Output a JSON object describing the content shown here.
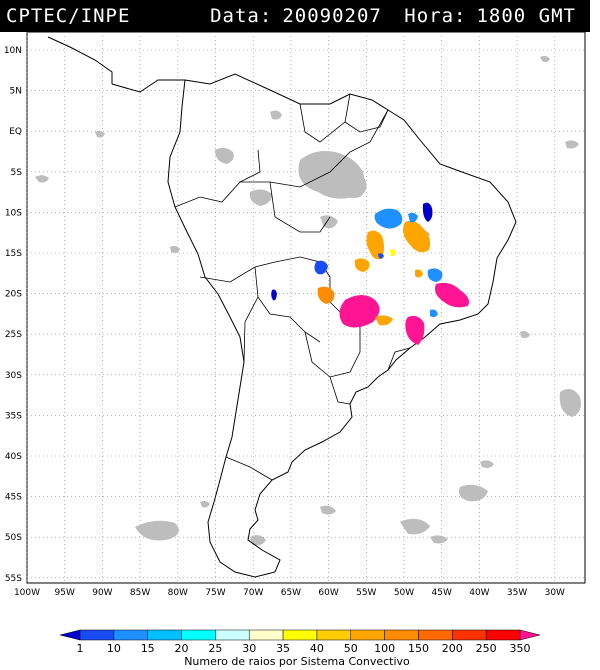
{
  "header": {
    "organization": "CPTEC/INPE",
    "date_label": "Data:",
    "date_value": "20090207",
    "time_label": "Hora:",
    "time_value": "1800 GMT"
  },
  "map": {
    "lat_ticks": [
      "10N",
      "5N",
      "EQ",
      "5S",
      "10S",
      "15S",
      "20S",
      "25S",
      "30S",
      "35S",
      "40S",
      "45S",
      "50S",
      "55S"
    ],
    "lon_ticks": [
      "100W",
      "95W",
      "90W",
      "85W",
      "80W",
      "75W",
      "70W",
      "65W",
      "60W",
      "55W",
      "50W",
      "45W",
      "40W",
      "35W",
      "30W"
    ],
    "lat_range": [
      10,
      -55
    ],
    "lon_range": [
      -100,
      -30
    ],
    "gridlines": "dotted",
    "coastline_color": "#000000",
    "cloud_color": "#bdbdbd"
  },
  "colorbar": {
    "labels": [
      "1",
      "10",
      "15",
      "20",
      "25",
      "30",
      "35",
      "40",
      "50",
      "100",
      "150",
      "200",
      "250",
      "350"
    ],
    "colors": [
      "#0000cc",
      "#1a4cf5",
      "#1e90ff",
      "#00bfff",
      "#00ffff",
      "#ccffff",
      "#ffffcc",
      "#ffff00",
      "#ffcc00",
      "#ffa500",
      "#ff8c00",
      "#ff6a00",
      "#ff3300",
      "#ff0000",
      "#ff1493"
    ],
    "title": "Numero de raios por Sistema Convectivo"
  },
  "features": [
    {
      "name": "blue-cluster-10s-55w",
      "color": "#1e90ff"
    },
    {
      "name": "orange-cluster-13s-55w",
      "color": "#ffa500"
    },
    {
      "name": "orange-cluster-14s-48w",
      "color": "#ffa500"
    },
    {
      "name": "blue-cluster-10s-46w",
      "color": "#0000cc"
    },
    {
      "name": "magenta-cluster-22s-57w",
      "color": "#ff1493"
    },
    {
      "name": "magenta-cluster-20s-44w",
      "color": "#ff1493"
    },
    {
      "name": "magenta-cluster-24s-47w",
      "color": "#ff1493"
    },
    {
      "name": "orange-cluster-19s-60w",
      "color": "#ff8c00"
    },
    {
      "name": "blue-cluster-17s-62w",
      "color": "#1a4cf5"
    },
    {
      "name": "blue-cluster-20s-66w",
      "color": "#0000cc"
    },
    {
      "name": "yellow-cluster-15s-50w",
      "color": "#ffff00"
    },
    {
      "name": "blue-cluster-18s-47w",
      "color": "#1e90ff"
    }
  ]
}
